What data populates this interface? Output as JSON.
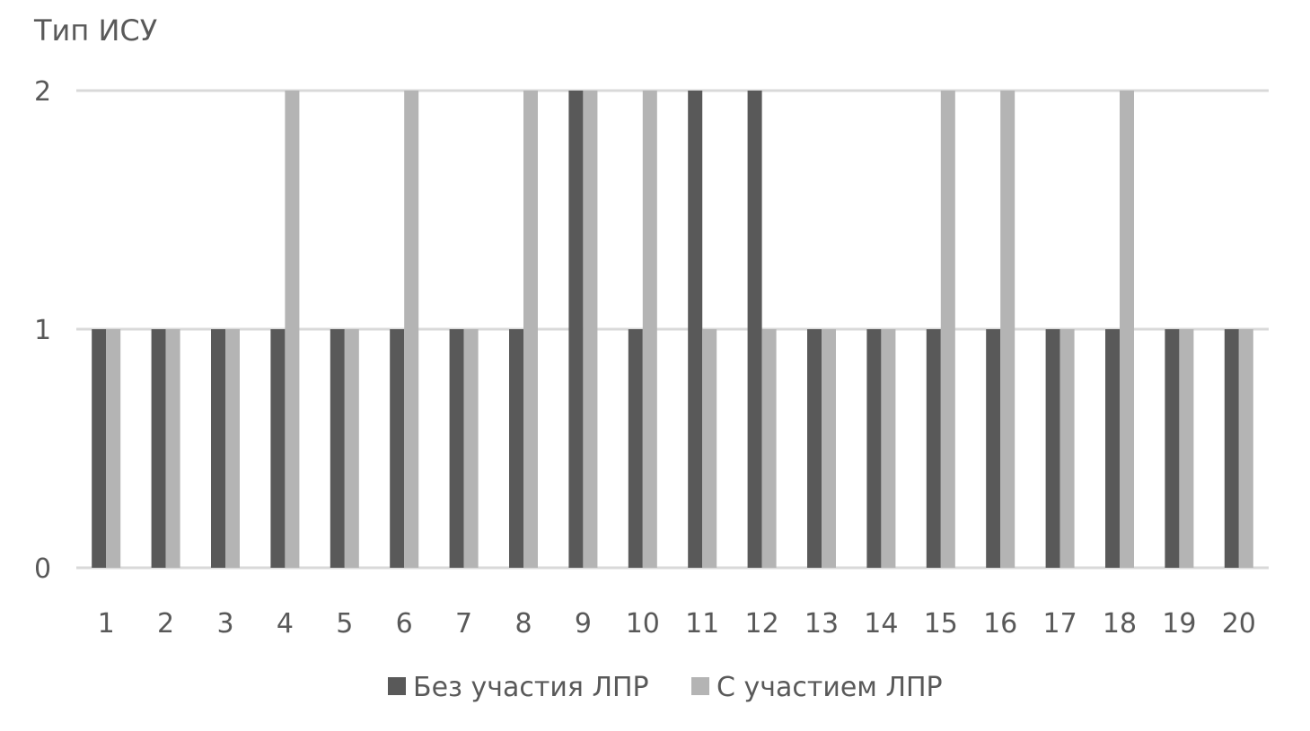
{
  "chart_data": {
    "type": "bar",
    "title": "",
    "ylabel": "Тип ИСУ",
    "xlabel": "",
    "ylim": [
      0,
      2
    ],
    "yticks": [
      "0",
      "1",
      "2"
    ],
    "grid": true,
    "legend_position": "bottom",
    "categories": [
      "1",
      "2",
      "3",
      "4",
      "5",
      "6",
      "7",
      "8",
      "9",
      "10",
      "11",
      "12",
      "13",
      "14",
      "15",
      "16",
      "17",
      "18",
      "19",
      "20"
    ],
    "series": [
      {
        "name": "Без участия ЛПР",
        "color": "#595959",
        "values": [
          1,
          1,
          1,
          1,
          1,
          1,
          1,
          1,
          2,
          1,
          2,
          2,
          1,
          1,
          1,
          1,
          1,
          1,
          1,
          1
        ]
      },
      {
        "name": "С участием ЛПР",
        "color": "#b4b4b4",
        "values": [
          1,
          1,
          1,
          2,
          1,
          2,
          1,
          2,
          2,
          2,
          1,
          1,
          1,
          1,
          2,
          2,
          1,
          2,
          1,
          1
        ]
      }
    ]
  }
}
